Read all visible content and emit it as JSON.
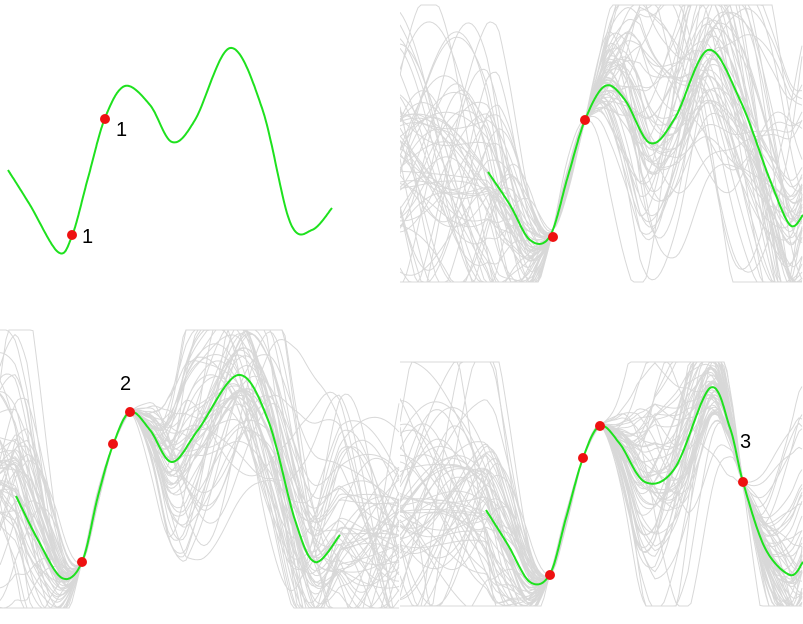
{
  "colors": {
    "truth_curve": "#1ee11e",
    "observation": "#ee1111",
    "samples": "#d8d8d8",
    "background": "#ffffff"
  },
  "panels": [
    {
      "id": "top-left",
      "show_samples": false,
      "observations": 2,
      "labels": [
        "1",
        "1"
      ]
    },
    {
      "id": "top-right",
      "show_samples": true,
      "observations": 2,
      "labels": []
    },
    {
      "id": "bottom-left",
      "show_samples": true,
      "observations": 3,
      "labels": [
        "2"
      ]
    },
    {
      "id": "bottom-right",
      "show_samples": true,
      "observations": 4,
      "labels": [
        "3"
      ]
    }
  ]
}
